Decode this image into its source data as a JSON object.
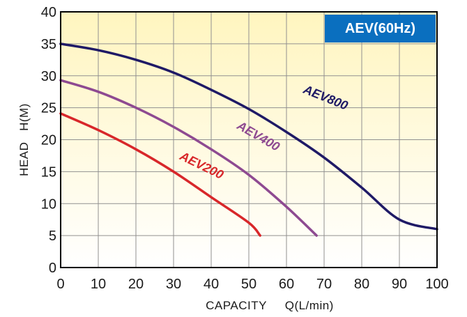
{
  "chart_data": {
    "type": "line",
    "title": "AEV(60Hz)",
    "xlabel": "CAPACITY     Q(L/min)",
    "ylabel": "HEAD   H(M)",
    "xlim": [
      0,
      100
    ],
    "ylim": [
      0,
      40
    ],
    "xticks": [
      0,
      10,
      20,
      30,
      40,
      50,
      60,
      70,
      80,
      90,
      100
    ],
    "yticks": [
      0,
      5,
      10,
      15,
      20,
      25,
      30,
      35,
      40
    ],
    "grid": true,
    "series": [
      {
        "name": "AEV800",
        "color": "#1f1a66",
        "x": [
          0,
          10,
          20,
          30,
          40,
          50,
          60,
          70,
          80,
          90,
          100
        ],
        "y": [
          35,
          34,
          32.5,
          30.5,
          27.8,
          24.8,
          21.2,
          17.2,
          12.5,
          7.5,
          6
        ]
      },
      {
        "name": "AEV400",
        "color": "#8e4a91",
        "x": [
          0,
          10,
          20,
          30,
          40,
          50,
          60,
          68
        ],
        "y": [
          29.3,
          27.5,
          25,
          22,
          18.5,
          14.5,
          9.5,
          5
        ]
      },
      {
        "name": "AEV200",
        "color": "#d8272a",
        "x": [
          0,
          10,
          20,
          30,
          40,
          50,
          53
        ],
        "y": [
          24.1,
          21.5,
          18.5,
          15,
          11,
          7,
          5
        ]
      }
    ],
    "colors": {
      "title_box": "#0a6fbf",
      "bg_top": "#fff5bf",
      "bg_bottom": "#ffffff",
      "grid": "#909090",
      "axis": "#000000"
    }
  }
}
